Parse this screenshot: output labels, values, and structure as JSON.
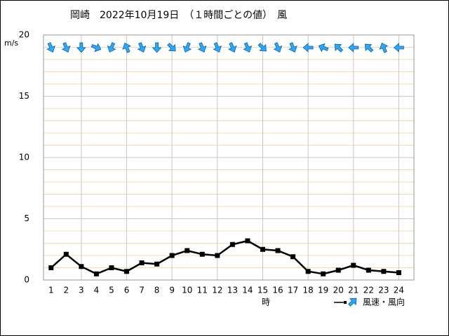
{
  "chart_data": {
    "type": "line",
    "title": "岡崎　2022年10月19日　（１時間ごとの値）　風",
    "y_label": "m/s",
    "x_label": "時",
    "x": [
      1,
      2,
      3,
      4,
      5,
      6,
      7,
      8,
      9,
      10,
      11,
      12,
      13,
      14,
      15,
      16,
      17,
      18,
      19,
      20,
      21,
      22,
      23,
      24
    ],
    "series": [
      {
        "name": "風速・風向",
        "color": "#000000",
        "arrow_color": "#29a9ff",
        "values": [
          1.0,
          2.1,
          1.1,
          0.5,
          1.0,
          0.7,
          1.4,
          1.3,
          2.0,
          2.4,
          2.1,
          2.0,
          2.9,
          3.2,
          2.5,
          2.4,
          1.9,
          0.7,
          0.5,
          0.8,
          1.2,
          0.8,
          0.7,
          0.6
        ],
        "directions": [
          157.5,
          157.5,
          180,
          112.5,
          202.5,
          337.5,
          157.5,
          180,
          135,
          202.5,
          157.5,
          157.5,
          157.5,
          157.5,
          135,
          157.5,
          157.5,
          270,
          292.5,
          315,
          270,
          315,
          337.5,
          270
        ]
      }
    ],
    "xlim": [
      0.5,
      25
    ],
    "ylim": [
      0,
      20
    ],
    "yticks": [
      0,
      5,
      10,
      15,
      20
    ],
    "grid": true
  }
}
